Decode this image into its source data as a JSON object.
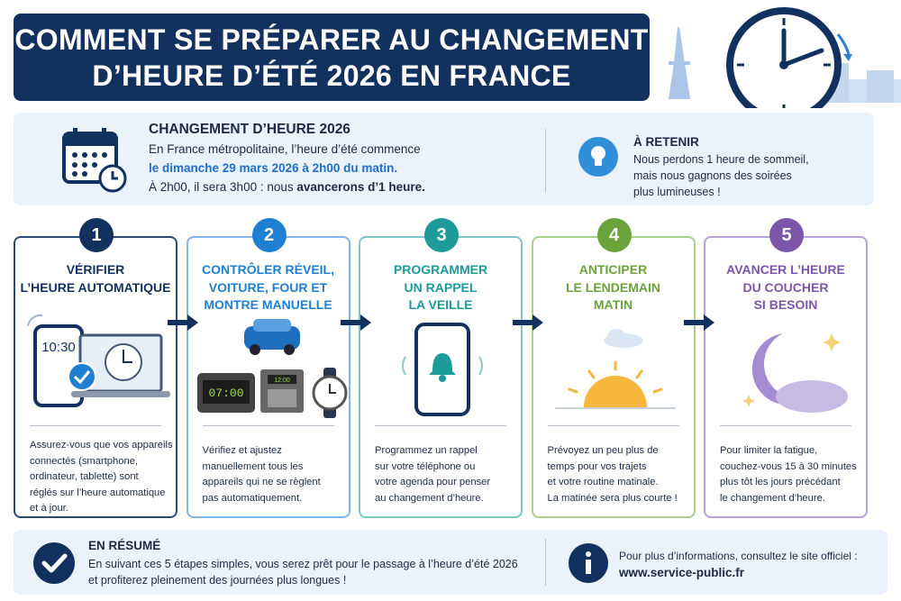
{
  "header": {
    "title_lines": [
      "COMMENT SE PRÉPARER AU CHANGEMENT",
      "D’HEURE D’ÉTÉ 2026 EN FRANCE"
    ]
  },
  "info": {
    "heading": "CHANGEMENT D’HEURE 2026",
    "line1": "En France métropolitaine, l’heure d’été commence",
    "date": "le dimanche 29 mars 2026 à 2h00 du matin.",
    "line3": "À 2h00, il sera 3h00 : nous",
    "line3_bold": "avancerons d’1 heure."
  },
  "remember": {
    "heading": "À RETENIR",
    "lines": [
      "Nous perdons 1 heure de sommeil,",
      "mais nous gagnons des soirées",
      "plus lumineuses !"
    ]
  },
  "steps": [
    {
      "number": 1,
      "title_lines": [
        "VÉRIFIER",
        "L’HEURE AUTOMATIQUE"
      ],
      "icon_text": [
        "10:30"
      ],
      "text_lines": [
        "Assurez-vous que vos appareils",
        "connectés (smartphone,",
        "ordinateur, tablette) sont",
        "réglés sur l’heure automatique",
        "et à jour."
      ]
    },
    {
      "number": 2,
      "title_lines": [
        "CONTRÔLER RÉVEIL,",
        "VOITURE, FOUR ET",
        "MONTRE MANUELLE"
      ],
      "icon_text": [
        "07:00",
        "12:00"
      ],
      "text_lines": [
        "Vérifiez et ajustez",
        "manuellement tous les",
        "appareils qui ne se règlent",
        "pas automatiquement."
      ]
    },
    {
      "number": 3,
      "title_lines": [
        "PROGRAMMER",
        "UN RAPPEL",
        "LA VEILLE"
      ],
      "text_lines": [
        "Programmez un rappel",
        "sur votre téléphone ou",
        "votre agenda pour penser",
        "au changement d’heure."
      ]
    },
    {
      "number": 4,
      "title_lines": [
        "ANTICIPER",
        "LE LENDEMAIN",
        "MATIN"
      ],
      "text_lines": [
        "Prévoyez un peu plus de",
        "temps pour vos trajets",
        "et votre routine matinale.",
        "La matinée sera plus courte !"
      ]
    },
    {
      "number": 5,
      "title_lines": [
        "AVANCER L’HEURE",
        "DU COUCHER",
        "SI BESOIN"
      ],
      "text_lines": [
        "Pour limiter la fatigue,",
        "couchez-vous 15 à 30 minutes",
        "plus tôt les jours précédant",
        "le changement d’heure."
      ]
    }
  ],
  "summary": {
    "heading": "EN RÉSUMÉ",
    "lines": [
      "En suivant ces 5 étapes simples, vous serez prêt pour le passage à l’heure d’été 2026",
      "et profiterez pleinement des journées plus longues !"
    ]
  },
  "more": {
    "text": "Pour plus d’informations, consultez le site officiel :",
    "link": "www.service-public.fr"
  }
}
